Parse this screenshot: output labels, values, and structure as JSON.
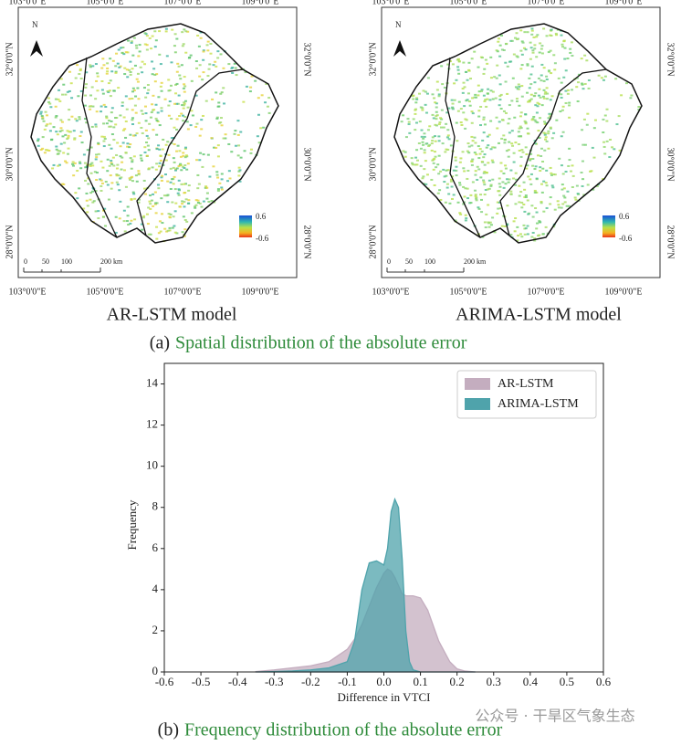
{
  "maps": [
    {
      "title": "AR-LSTM model"
    },
    {
      "title": "ARIMA-LSTM model"
    }
  ],
  "map_axes": {
    "lon": [
      "103°0'0\"E",
      "105°0'0\"E",
      "107°0'0\"E",
      "109°0'0\"E"
    ],
    "lat": [
      "32°0'0\"N",
      "30°0'0\"N",
      "28°0'0\"N"
    ],
    "legend": [
      "0.6",
      "-0.6"
    ],
    "scale": [
      "0",
      "50",
      "100",
      "200 km"
    ],
    "north": "N"
  },
  "caption_a": {
    "label": "(a)",
    "text": "Spatial distribution of the absolute error"
  },
  "chart_data": {
    "type": "area",
    "xlabel": "Difference in VTCI",
    "ylabel": "Frequency",
    "x": [
      -0.35,
      -0.3,
      -0.25,
      -0.2,
      -0.15,
      -0.1,
      -0.08,
      -0.06,
      -0.04,
      -0.02,
      0,
      0.01,
      0.02,
      0.03,
      0.04,
      0.05,
      0.06,
      0.07,
      0.08,
      0.1,
      0.12,
      0.15,
      0.18,
      0.2,
      0.22,
      0.25
    ],
    "series": [
      {
        "name": "AR-LSTM",
        "color": "#c4adbf",
        "values": [
          0.02,
          0.1,
          0.2,
          0.3,
          0.5,
          1.1,
          1.6,
          2.3,
          3.2,
          4.1,
          4.8,
          5.0,
          4.9,
          4.6,
          4.2,
          3.8,
          3.7,
          3.7,
          3.7,
          3.6,
          3.0,
          1.5,
          0.5,
          0.15,
          0.05,
          0
        ]
      },
      {
        "name": "ARIMA-LSTM",
        "color": "#4fa3ab",
        "values": [
          0,
          0.02,
          0.05,
          0.1,
          0.2,
          0.5,
          1.5,
          4.0,
          5.3,
          5.4,
          5.2,
          6.0,
          7.8,
          8.4,
          8.0,
          5.5,
          2.0,
          0.5,
          0.1,
          0,
          0,
          0,
          0,
          0,
          0,
          0
        ]
      }
    ],
    "xlim": [
      -0.6,
      0.6
    ],
    "xticks": [
      -0.6,
      -0.5,
      -0.4,
      -0.3,
      -0.2,
      -0.1,
      {
        "value": 0,
        "label": "0.0"
      },
      0.1,
      0.2,
      0.3,
      0.4,
      0.5,
      0.6
    ],
    "ylim": [
      0,
      15
    ],
    "yticks": [
      0,
      2,
      4,
      6,
      8,
      10,
      12,
      14
    ],
    "legend": "upper right"
  },
  "caption_b": {
    "label": "(b)",
    "text": "Frequency distribution of the absolute error"
  },
  "watermark": "公众号 · 干旱区气象生态"
}
